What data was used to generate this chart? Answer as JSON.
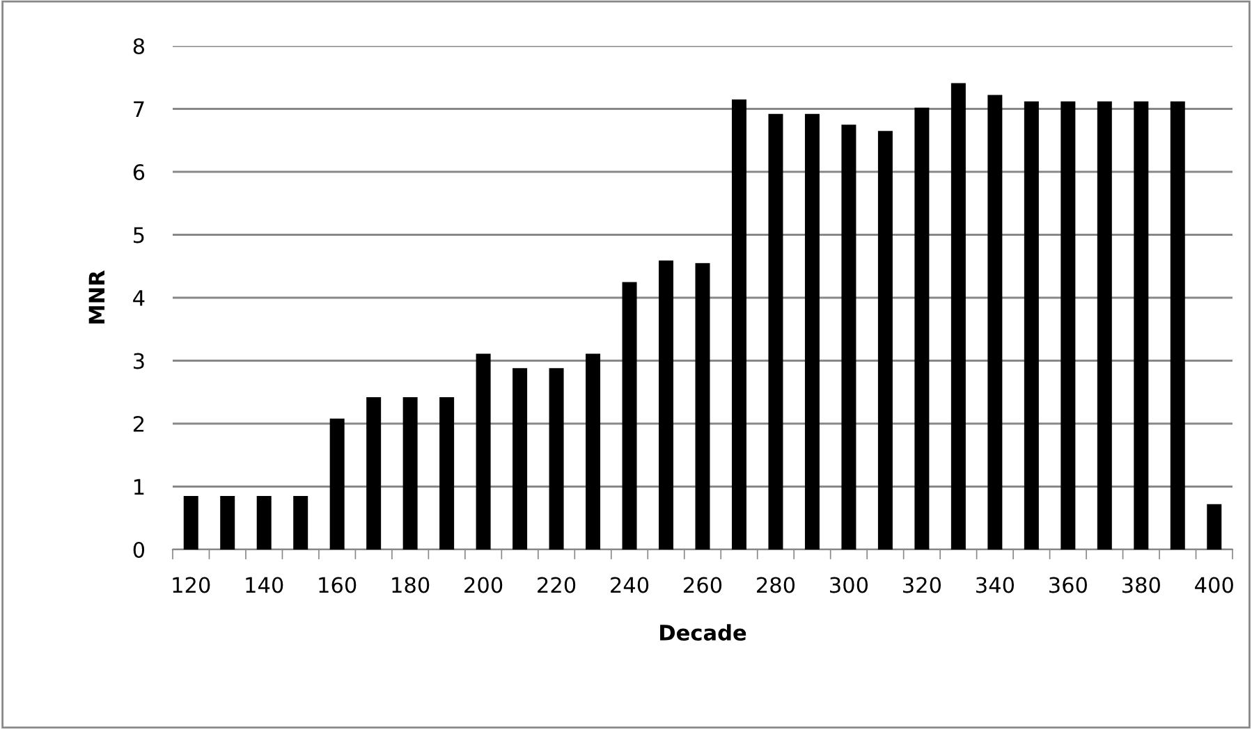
{
  "chart_data": {
    "type": "bar",
    "xlabel": "Decade",
    "ylabel": "MNR",
    "categories": [
      "120",
      null,
      "140",
      null,
      "160",
      null,
      "180",
      null,
      "200",
      null,
      "220",
      null,
      "240",
      null,
      "260",
      null,
      "280",
      null,
      "300",
      null,
      "320",
      null,
      "340",
      null,
      "360",
      null,
      "380",
      null,
      "400"
    ],
    "values": [
      0.85,
      0.85,
      0.85,
      0.85,
      2.08,
      2.42,
      2.42,
      2.42,
      3.11,
      2.88,
      2.88,
      3.11,
      4.25,
      4.59,
      4.55,
      7.15,
      6.92,
      6.92,
      6.75,
      6.65,
      7.02,
      7.41,
      7.22,
      7.12,
      7.12,
      7.12,
      7.12,
      7.12,
      0.72
    ],
    "color": "#000000",
    "ylim": [
      0,
      8
    ],
    "yticks": [
      0,
      1,
      2,
      3,
      4,
      5,
      6,
      7,
      8
    ],
    "grid": "y"
  }
}
